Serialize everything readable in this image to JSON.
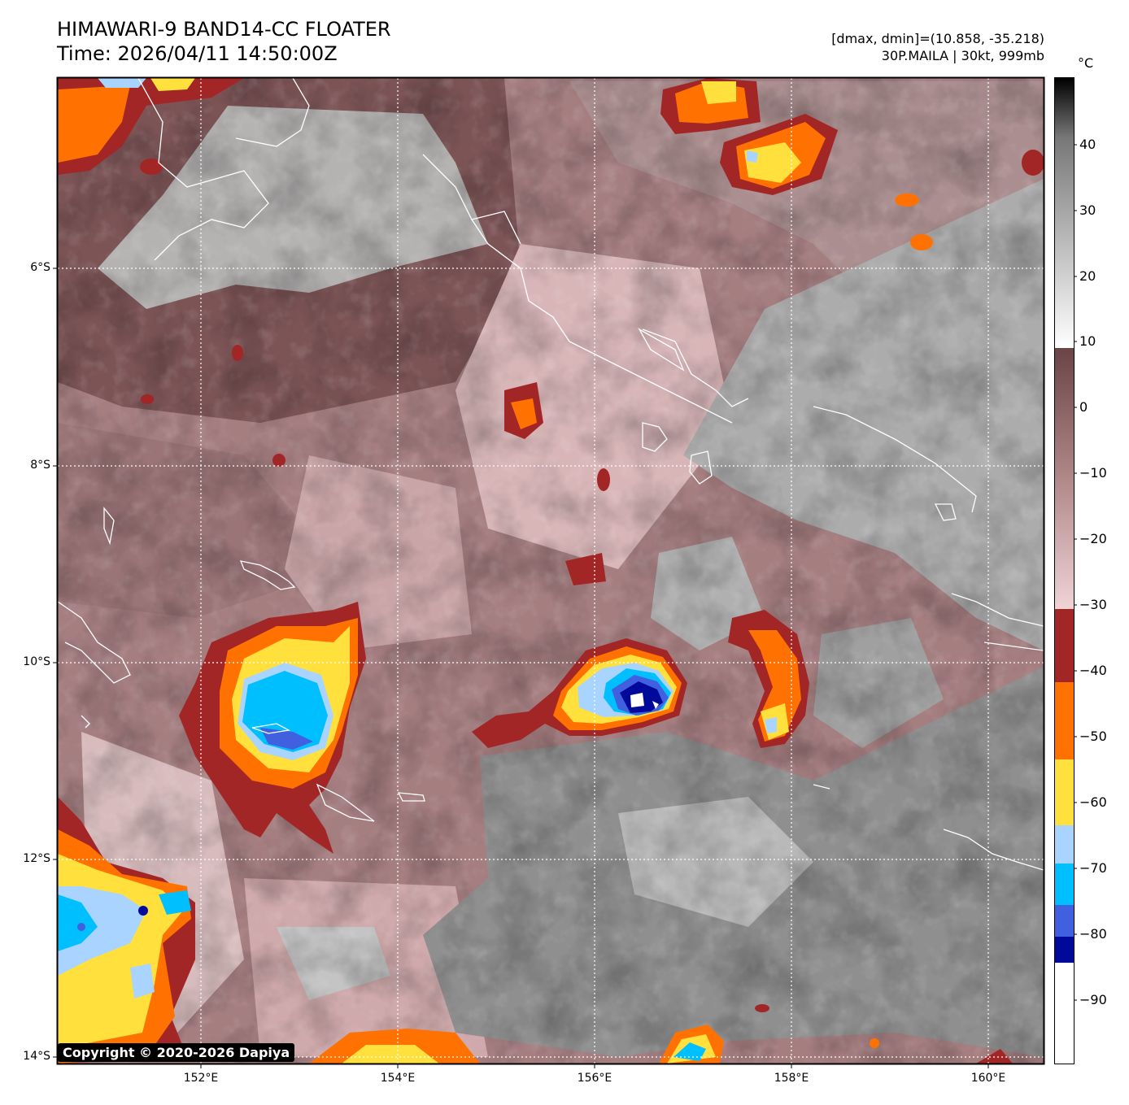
{
  "header": {
    "title_line1": "HIMAWARI-9 BAND14-CC FLOATER",
    "title_line2": "Time: 2026/04/11 14:50:00Z",
    "range_text": "[dmax, dmin]=(10.858, -35.218)",
    "storm_text": "30P.MAILA | 30kt, 999mb"
  },
  "map": {
    "lat_labels": [
      "6°S",
      "8°S",
      "10°S",
      "12°S",
      "14°S"
    ],
    "lon_labels": [
      "152°E",
      "154°E",
      "156°E",
      "158°E",
      "160°E"
    ],
    "grid": "dotted white"
  },
  "colorbar": {
    "unit": "°C",
    "ticks": [
      "40",
      "30",
      "20",
      "10",
      "0",
      "−10",
      "−20",
      "−30",
      "−40",
      "−50",
      "−60",
      "−70",
      "−80",
      "−90"
    ],
    "colors": {
      "warm_black": "#000000",
      "warm_grey": "#888888",
      "warm_white": "#ffffff",
      "brown_dark": "#5b3233",
      "brown": "#8a5e5e",
      "pink": "#e8cccc",
      "red": "#a32626",
      "orange": "#ff7100",
      "yellow": "#ffe03c",
      "light_blue": "#a8d4ff",
      "cyan": "#00bfff",
      "royal_blue": "#4060e0",
      "navy": "#000a9a",
      "white": "#ffffff"
    }
  },
  "footer": {
    "copyright": "Copyright © 2020-2026 Dapiya"
  }
}
